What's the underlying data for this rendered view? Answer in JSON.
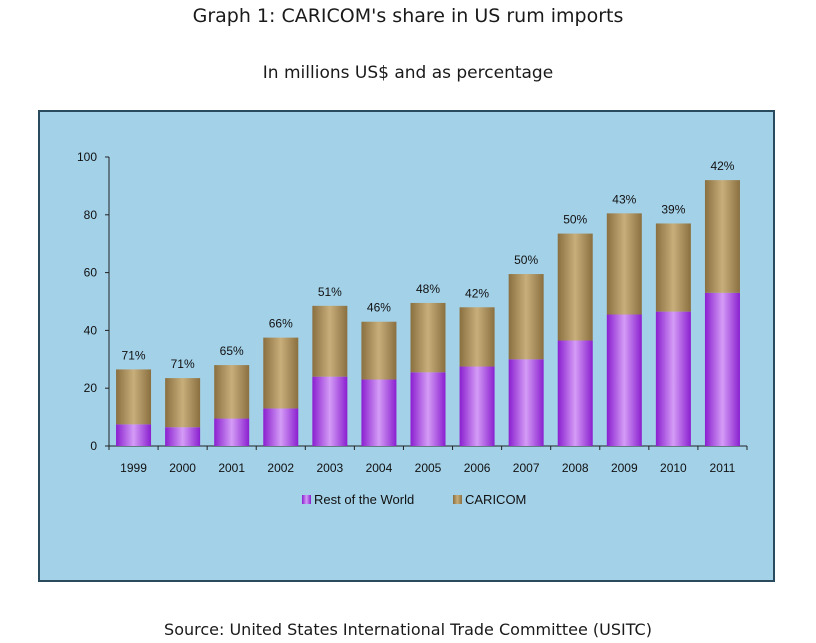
{
  "title": "Graph 1: CARICOM's share in US rum imports",
  "subtitle": "In millions US$ and as percentage",
  "source": "Source: United States International Trade Committee (USITC)",
  "colors": {
    "rest_of_world": "#b14ae6",
    "caricom": "#a8905b",
    "background": "#a3d1e8"
  },
  "chart_data": {
    "type": "bar",
    "stacked": true,
    "title": "Graph 1: CARICOM's share in US rum imports",
    "subtitle": "In millions US$ and as percentage",
    "xlabel": "",
    "ylabel": "",
    "ylim": [
      0,
      100
    ],
    "yticks": [
      "0",
      "20",
      "40",
      "60",
      "80",
      "100"
    ],
    "legend_position": "bottom",
    "categories": [
      "1999",
      "2000",
      "2001",
      "2002",
      "2003",
      "2004",
      "2005",
      "2006",
      "2007",
      "2008",
      "2009",
      "2010",
      "2011"
    ],
    "series": [
      {
        "name": "Rest of the World",
        "values": [
          7.5,
          6.5,
          9.5,
          13,
          24,
          23,
          25.5,
          27.5,
          30,
          36.5,
          45.5,
          46.5,
          53
        ]
      },
      {
        "name": "CARICOM",
        "values": [
          19,
          17,
          18.5,
          24.5,
          24.5,
          20,
          24,
          20.5,
          29.5,
          37,
          35,
          30.5,
          39
        ]
      }
    ],
    "annotations": [
      "71%",
      "71%",
      "65%",
      "66%",
      "51%",
      "46%",
      "48%",
      "42%",
      "50%",
      "50%",
      "43%",
      "39%",
      "42%"
    ]
  }
}
